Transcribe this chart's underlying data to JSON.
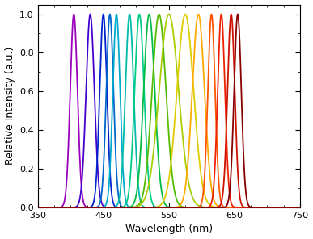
{
  "peaks": [
    405,
    430,
    450,
    460,
    470,
    490,
    505,
    520,
    535,
    550,
    575,
    595,
    615,
    630,
    645,
    655
  ],
  "fwhm": [
    13,
    15,
    13,
    13,
    13,
    15,
    17,
    20,
    25,
    35,
    30,
    22,
    13,
    13,
    13,
    13
  ],
  "colors": [
    "#9900BB",
    "#4400CC",
    "#0022CC",
    "#0066CC",
    "#00AACC",
    "#00BBAA",
    "#00CC88",
    "#00BB44",
    "#55BB00",
    "#AACC00",
    "#DDCC00",
    "#FFAA00",
    "#FF5500",
    "#EE2200",
    "#CC1100",
    "#880000"
  ],
  "xlim": [
    350,
    750
  ],
  "ylim": [
    0,
    1.05
  ],
  "xticks": [
    350,
    450,
    550,
    650,
    750
  ],
  "yticks": [
    0,
    0.2,
    0.4,
    0.6,
    0.8,
    1.0
  ],
  "xlabel": "Wavelength (nm)",
  "ylabel": "Relative Intensity (a.u.)",
  "linewidth": 1.3,
  "figsize": [
    3.87,
    2.96
  ],
  "dpi": 100,
  "background_color": "#ffffff",
  "tick_labelsize": 8,
  "axis_labelsize": 9,
  "spine_linewidth": 0.8
}
